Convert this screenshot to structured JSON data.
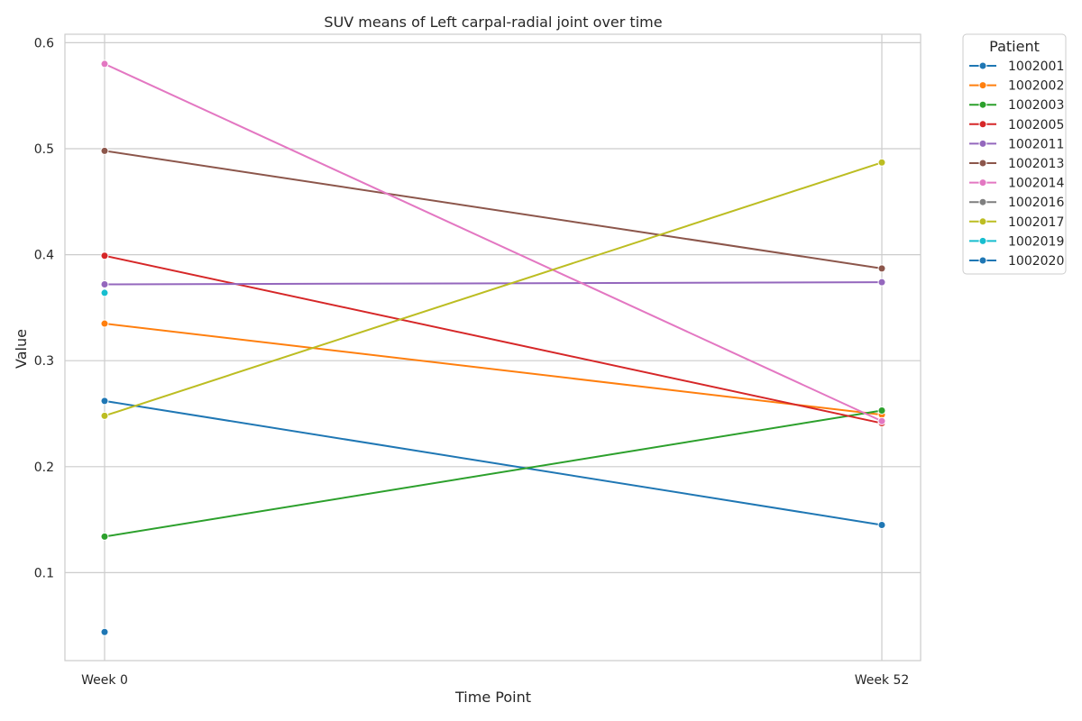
{
  "chart_data": {
    "type": "line",
    "title": "SUV means of Left carpal-radial joint over time",
    "xlabel": "Time Point",
    "ylabel": "Value",
    "categories": [
      "Week 0",
      "Week 52"
    ],
    "yticks": [
      "0.1",
      "0.2",
      "0.3",
      "0.4",
      "0.5",
      "0.6"
    ],
    "ylim": [
      0.017,
      0.608
    ],
    "grid": true,
    "legend": {
      "title": "Patient",
      "placement": "outside-top-right"
    },
    "series": [
      {
        "name": "1002001",
        "color": "#1f77b4",
        "values": [
          0.262,
          0.145
        ]
      },
      {
        "name": "1002002",
        "color": "#ff7f0e",
        "values": [
          0.335,
          0.249
        ]
      },
      {
        "name": "1002003",
        "color": "#2ca02c",
        "values": [
          0.134,
          0.253
        ]
      },
      {
        "name": "1002005",
        "color": "#d62728",
        "values": [
          0.399,
          0.241
        ]
      },
      {
        "name": "1002011",
        "color": "#9467bd",
        "values": [
          0.372,
          0.374
        ]
      },
      {
        "name": "1002013",
        "color": "#8c564b",
        "values": [
          0.498,
          0.387
        ]
      },
      {
        "name": "1002014",
        "color": "#e377c2",
        "values": [
          0.58,
          0.243
        ]
      },
      {
        "name": "1002016",
        "color": "#7f7f7f",
        "values": [
          null,
          null
        ]
      },
      {
        "name": "1002017",
        "color": "#bcbd22",
        "values": [
          0.248,
          0.487
        ]
      },
      {
        "name": "1002019",
        "color": "#17becf",
        "values": [
          0.364,
          null
        ]
      },
      {
        "name": "1002020",
        "color": "#1f77b4",
        "values": [
          0.044,
          null
        ]
      }
    ]
  }
}
